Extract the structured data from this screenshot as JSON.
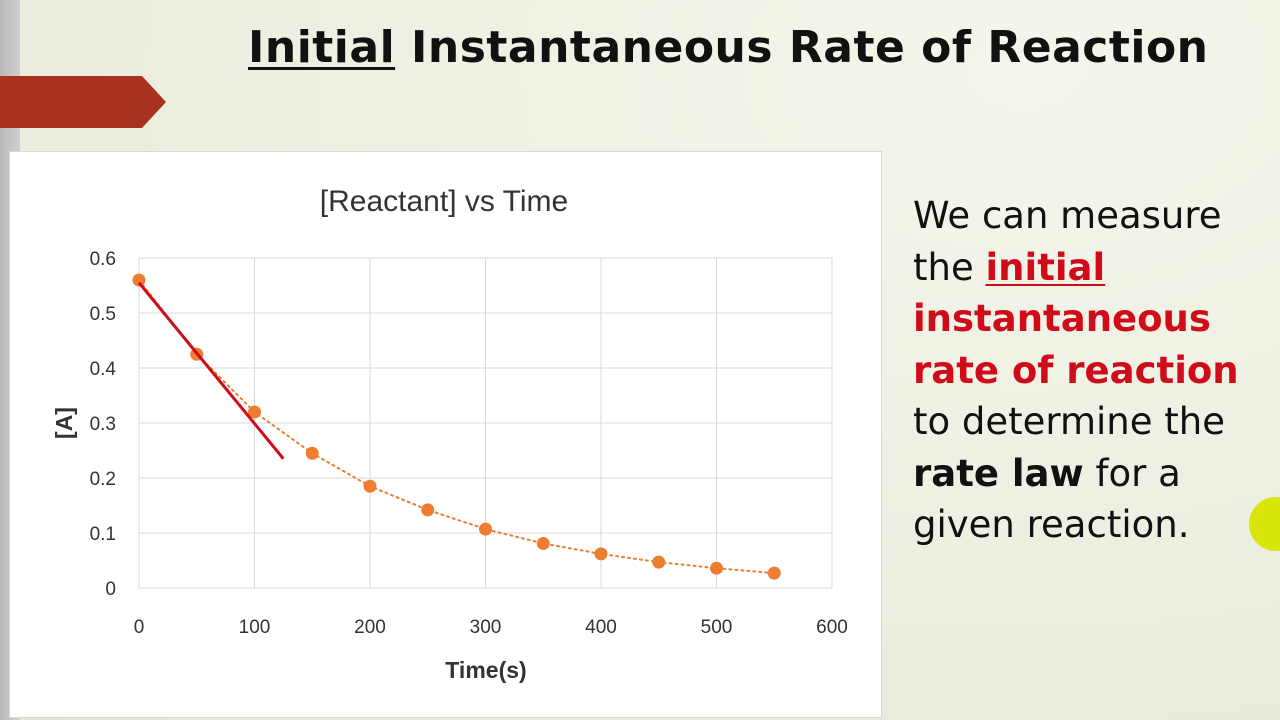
{
  "slide": {
    "title_underlined": "Initial",
    "title_rest": "Instantaneous Rate of Reaction"
  },
  "side_text": {
    "t1": "We can measure the ",
    "t2": "initial",
    "t3": "instantaneous rate of reaction",
    "t4": " to determine the ",
    "t5": "rate law",
    "t6": " for a given reaction."
  },
  "colors": {
    "marker": "#ed7d31",
    "tangent": "#d10c1a",
    "banner": "#a9321f",
    "highlight_text": "#d10c1a"
  },
  "chart_data": {
    "type": "scatter",
    "title": "[Reactant]  vs Time",
    "xlabel": "Time(s)",
    "ylabel": "[A]",
    "xlim": [
      0,
      600
    ],
    "ylim": [
      0,
      0.6
    ],
    "xticks": [
      0,
      100,
      200,
      300,
      400,
      500,
      600
    ],
    "yticks": [
      0,
      0.1,
      0.2,
      0.3,
      0.4,
      0.5,
      0.6
    ],
    "grid": true,
    "series": [
      {
        "name": "[A]",
        "x": [
          0,
          50,
          100,
          150,
          200,
          250,
          300,
          350,
          400,
          450,
          500,
          550
        ],
        "y": [
          0.56,
          0.425,
          0.32,
          0.245,
          0.185,
          0.142,
          0.107,
          0.081,
          0.062,
          0.047,
          0.036,
          0.027
        ],
        "trendline": "dotted"
      }
    ],
    "tangent_line": {
      "x": [
        0,
        125
      ],
      "y": [
        0.555,
        0.235
      ]
    }
  }
}
